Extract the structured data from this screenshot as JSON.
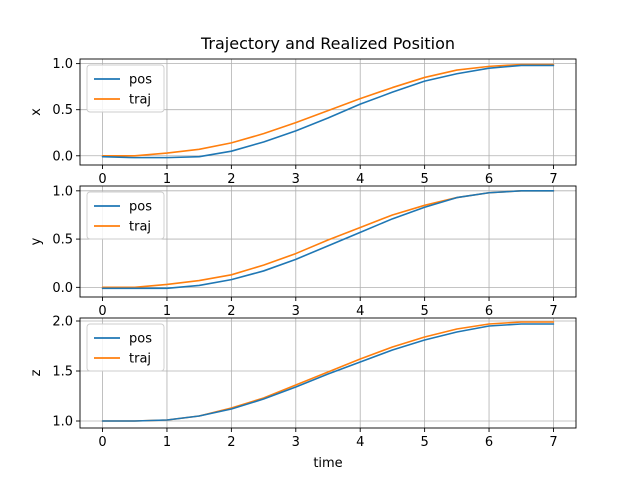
{
  "figure": {
    "title": "Trajectory and Realized Position",
    "xlabel": "time"
  },
  "colors": {
    "pos": "#1f77b4",
    "traj": "#ff7f0e",
    "grid": "#b0b0b0"
  },
  "chart_data": [
    {
      "type": "line",
      "ylabel": "x",
      "xlim": [
        -0.35,
        7.35
      ],
      "ylim": [
        -0.1,
        1.05
      ],
      "xticks": [
        0,
        1,
        2,
        3,
        4,
        5,
        6,
        7
      ],
      "yticks": [
        0.0,
        0.5,
        1.0
      ],
      "ytick_labels": [
        "0.0",
        "0.5",
        "1.0"
      ],
      "grid": true,
      "legend": "top-left",
      "x": [
        0,
        0.5,
        1,
        1.5,
        2,
        2.5,
        3,
        3.5,
        4,
        4.5,
        5,
        5.5,
        6,
        6.5,
        7
      ],
      "series": [
        {
          "name": "pos",
          "values": [
            -0.01,
            -0.02,
            -0.02,
            -0.01,
            0.05,
            0.15,
            0.27,
            0.41,
            0.56,
            0.69,
            0.81,
            0.89,
            0.95,
            0.98,
            0.98
          ]
        },
        {
          "name": "traj",
          "values": [
            0.0,
            0.0,
            0.03,
            0.07,
            0.14,
            0.24,
            0.36,
            0.49,
            0.62,
            0.74,
            0.85,
            0.93,
            0.97,
            0.99,
            0.99
          ]
        }
      ]
    },
    {
      "type": "line",
      "ylabel": "y",
      "xlim": [
        -0.35,
        7.35
      ],
      "ylim": [
        -0.1,
        1.05
      ],
      "xticks": [
        0,
        1,
        2,
        3,
        4,
        5,
        6,
        7
      ],
      "yticks": [
        0.0,
        0.5,
        1.0
      ],
      "ytick_labels": [
        "0.0",
        "0.5",
        "1.0"
      ],
      "grid": true,
      "legend": "top-left",
      "x": [
        0,
        0.5,
        1,
        1.5,
        2,
        2.5,
        3,
        3.5,
        4,
        4.5,
        5,
        5.5,
        6,
        6.5,
        7
      ],
      "series": [
        {
          "name": "pos",
          "values": [
            -0.01,
            -0.01,
            -0.01,
            0.02,
            0.08,
            0.17,
            0.29,
            0.43,
            0.57,
            0.71,
            0.83,
            0.93,
            0.98,
            1.0,
            1.0
          ]
        },
        {
          "name": "traj",
          "values": [
            0.0,
            0.0,
            0.03,
            0.07,
            0.13,
            0.23,
            0.35,
            0.49,
            0.62,
            0.75,
            0.85,
            0.93,
            0.98,
            1.0,
            1.0
          ]
        }
      ]
    },
    {
      "type": "line",
      "ylabel": "z",
      "xlim": [
        -0.35,
        7.35
      ],
      "ylim": [
        0.93,
        2.03
      ],
      "xticks": [
        0,
        1,
        2,
        3,
        4,
        5,
        6,
        7
      ],
      "yticks": [
        1.0,
        1.5,
        2.0
      ],
      "ytick_labels": [
        "1.0",
        "1.5",
        "2.0"
      ],
      "grid": true,
      "legend": "top-left",
      "x": [
        0,
        0.5,
        1,
        1.5,
        2,
        2.5,
        3,
        3.5,
        4,
        4.5,
        5,
        5.5,
        6,
        6.5,
        7
      ],
      "series": [
        {
          "name": "pos",
          "values": [
            1.0,
            1.0,
            1.01,
            1.05,
            1.12,
            1.22,
            1.34,
            1.47,
            1.59,
            1.71,
            1.81,
            1.89,
            1.95,
            1.97,
            1.97
          ]
        },
        {
          "name": "traj",
          "values": [
            1.0,
            1.0,
            1.01,
            1.05,
            1.13,
            1.23,
            1.36,
            1.49,
            1.62,
            1.74,
            1.84,
            1.92,
            1.97,
            1.99,
            1.99
          ]
        }
      ]
    }
  ]
}
